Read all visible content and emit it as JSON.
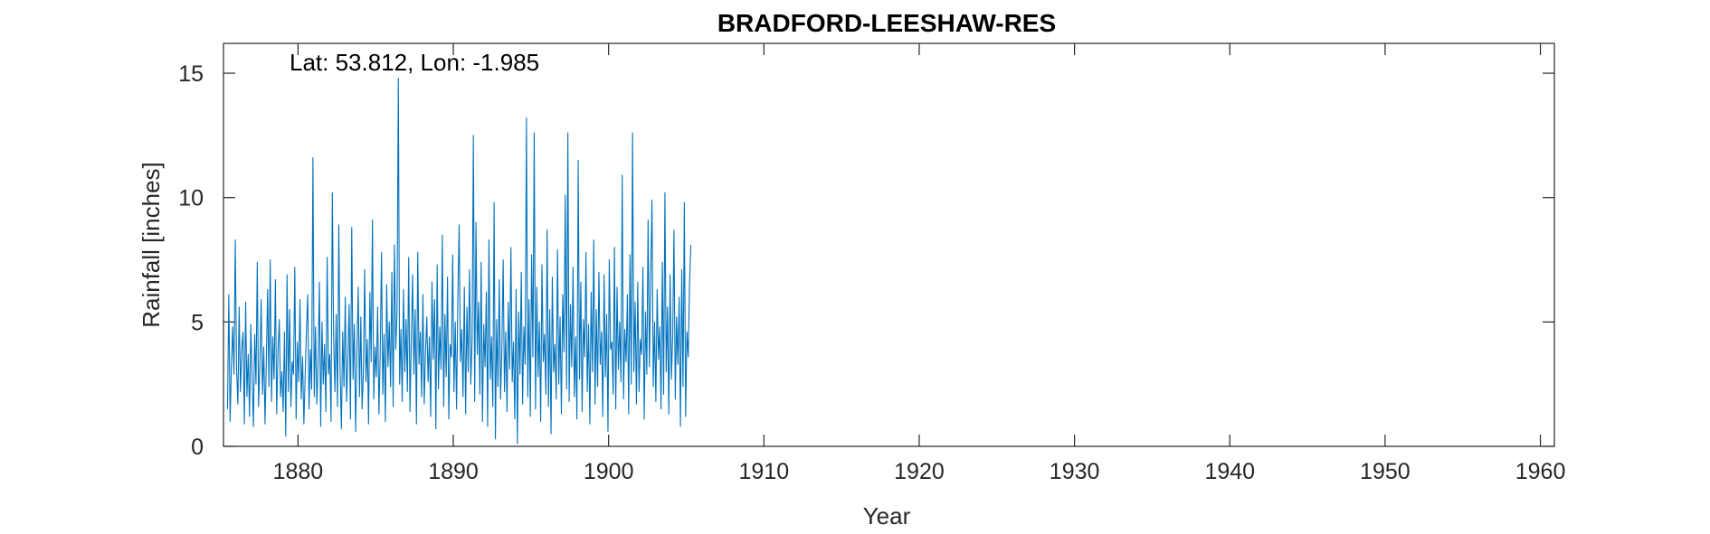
{
  "chart_data": {
    "type": "line",
    "title": "BRADFORD-LEESHAW-RES",
    "annotation": "Lat: 53.812, Lon: -1.985",
    "xlabel": "Year",
    "ylabel": "Rainfall [inches]",
    "xlim": [
      1875.2,
      1960.9
    ],
    "ylim": [
      0,
      16.2
    ],
    "xticks": [
      1880,
      1890,
      1900,
      1910,
      1920,
      1930,
      1940,
      1950,
      1960
    ],
    "xtick_labels": [
      "1880",
      "1890",
      "1900",
      "1910",
      "1920",
      "1930",
      "1940",
      "1950",
      "1960"
    ],
    "yticks": [
      0,
      5,
      10,
      15
    ],
    "ytick_labels": [
      "0",
      "5",
      "10",
      "15"
    ],
    "grid": false,
    "series_color": "#0072BD",
    "series": [
      {
        "frequency": "monthly",
        "x_start": 1875.46,
        "x_step": 0.08333,
        "values": [
          1.5,
          6.1,
          1.0,
          3.2,
          4.8,
          2.9,
          8.3,
          3.1,
          1.7,
          5.6,
          2.2,
          3.9,
          4.6,
          0.9,
          5.8,
          2.0,
          3.7,
          1.2,
          4.9,
          2.8,
          0.8,
          4.5,
          2.5,
          7.4,
          1.6,
          3.3,
          5.9,
          2.1,
          4.0,
          0.9,
          3.5,
          6.3,
          2.4,
          7.5,
          1.8,
          4.4,
          2.7,
          6.7,
          1.3,
          3.8,
          5.1,
          2.0,
          3.0,
          1.4,
          4.6,
          0.4,
          6.9,
          2.2,
          5.5,
          1.6,
          3.4,
          2.9,
          7.2,
          1.1,
          4.2,
          2.6,
          5.9,
          1.9,
          3.6,
          0.9,
          2.8,
          4.7,
          6.1,
          1.5,
          3.9,
          2.3,
          11.6,
          2.0,
          4.8,
          1.7,
          3.3,
          6.6,
          0.8,
          5.0,
          2.5,
          4.1,
          1.4,
          7.6,
          2.9,
          3.7,
          1.0,
          10.2,
          4.4,
          2.2,
          5.3,
          1.6,
          8.9,
          3.1,
          0.7,
          4.6,
          2.4,
          6.0,
          1.8,
          3.5,
          5.7,
          1.1,
          8.8,
          2.7,
          4.9,
          0.6,
          3.8,
          6.4,
          2.0,
          5.2,
          1.5,
          3.0,
          7.1,
          2.6,
          4.3,
          0.9,
          6.2,
          3.4,
          9.1,
          1.9,
          4.0,
          2.8,
          5.6,
          1.3,
          3.7,
          7.8,
          2.1,
          4.5,
          1.0,
          6.5,
          3.2,
          5.0,
          2.4,
          7.0,
          1.6,
          8.1,
          3.9,
          5.4,
          14.8,
          2.5,
          4.7,
          1.8,
          6.3,
          3.0,
          5.1,
          2.2,
          7.6,
          1.4,
          4.2,
          6.9,
          2.9,
          5.5,
          0.9,
          7.8,
          3.3,
          4.6,
          2.0,
          6.1,
          1.7,
          3.8,
          5.2,
          2.6,
          4.4,
          1.2,
          6.6,
          3.5,
          5.9,
          0.7,
          7.3,
          2.3,
          4.8,
          3.1,
          8.5,
          1.6,
          5.3,
          2.8,
          6.8,
          1.1,
          4.1,
          3.6,
          7.7,
          2.2,
          5.0,
          1.5,
          6.0,
          8.9,
          3.4,
          4.7,
          2.0,
          6.4,
          1.3,
          5.6,
          3.0,
          7.1,
          2.5,
          4.3,
          12.5,
          1.8,
          9.0,
          3.7,
          5.8,
          2.1,
          7.4,
          1.0,
          4.9,
          3.2,
          6.2,
          0.8,
          8.3,
          2.7,
          4.4,
          1.6,
          9.8,
          0.3,
          5.1,
          2.4,
          6.7,
          1.9,
          3.9,
          7.5,
          2.2,
          4.6,
          1.4,
          5.8,
          3.1,
          8.0,
          2.6,
          4.2,
          1.1,
          6.3,
          0.1,
          5.4,
          2.9,
          7.0,
          1.7,
          4.8,
          3.3,
          13.2,
          2.0,
          5.9,
          1.2,
          7.7,
          3.6,
          12.6,
          1.5,
          6.4,
          2.8,
          5.0,
          1.0,
          7.3,
          3.4,
          4.5,
          2.1,
          8.7,
          1.6,
          5.5,
          0.5,
          6.8,
          3.0,
          4.1,
          1.9,
          7.9,
          2.5,
          5.2,
          1.3,
          6.1,
          3.8,
          10.1,
          2.3,
          12.6,
          1.8,
          5.7,
          3.2,
          7.2,
          2.0,
          4.4,
          1.1,
          11.5,
          2.7,
          6.6,
          1.4,
          5.1,
          3.6,
          7.8,
          2.2,
          4.9,
          0.9,
          6.2,
          3.0,
          8.3,
          1.7,
          5.5,
          2.4,
          7.0,
          3.3,
          4.6,
          1.2,
          6.9,
          2.8,
          5.3,
          0.6,
          7.5,
          3.9,
          4.2,
          2.1,
          8.0,
          1.5,
          6.4,
          3.1,
          5.0,
          2.6,
          10.9,
          1.9,
          4.7,
          3.4,
          6.1,
          1.3,
          7.7,
          2.5,
          12.6,
          3.0,
          5.8,
          1.7,
          6.6,
          2.2,
          4.3,
          3.7,
          7.2,
          1.1,
          5.4,
          2.9,
          9.1,
          3.2,
          6.8,
          9.9,
          2.4,
          5.0,
          1.8,
          6.3,
          3.5,
          4.8,
          1.5,
          7.4,
          2.1,
          10.2,
          3.0,
          5.6,
          1.3,
          6.9,
          2.7,
          4.4,
          8.7,
          1.9,
          5.2,
          3.3,
          6.0,
          0.8,
          7.1,
          2.4,
          9.8,
          1.2,
          4.6,
          3.6,
          6.5,
          8.1
        ]
      }
    ]
  }
}
